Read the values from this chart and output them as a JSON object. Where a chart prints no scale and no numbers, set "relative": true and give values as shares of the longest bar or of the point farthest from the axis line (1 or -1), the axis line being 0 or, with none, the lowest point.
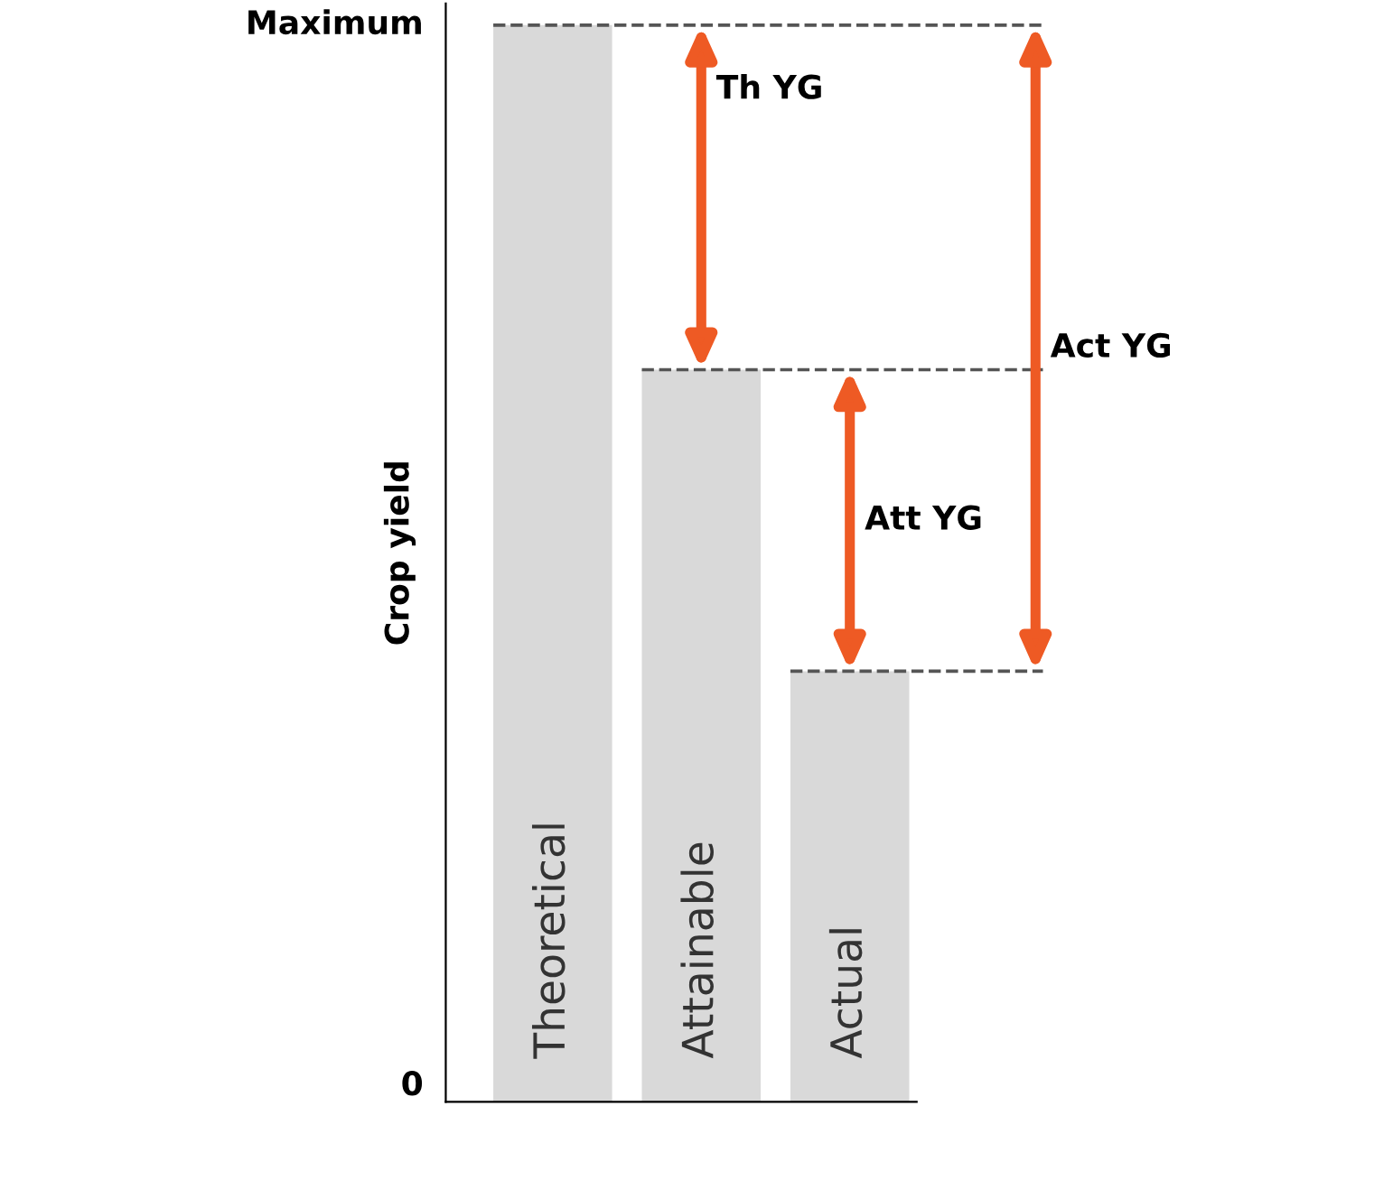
{
  "chart_data": {
    "type": "bar",
    "ylabel": "Crop yield",
    "categories": [
      "Theoretical",
      "Attainable",
      "Actual"
    ],
    "values": [
      1,
      0.68,
      0.4
    ],
    "color": "#d9d9d9",
    "relative": true,
    "annotations": [
      "Th YG",
      "Att YG",
      "Act YG",
      "Maximum",
      "0"
    ],
    "ref_lines": [
      {
        "axis": "y",
        "value": 1,
        "color": "#555555",
        "line_style": "dashed"
      },
      {
        "axis": "y",
        "value": 0.68,
        "color": "#555555",
        "line_style": "dashed"
      },
      {
        "axis": "y",
        "value": 0.4,
        "color": "#555555",
        "line_style": "dashed"
      }
    ]
  }
}
